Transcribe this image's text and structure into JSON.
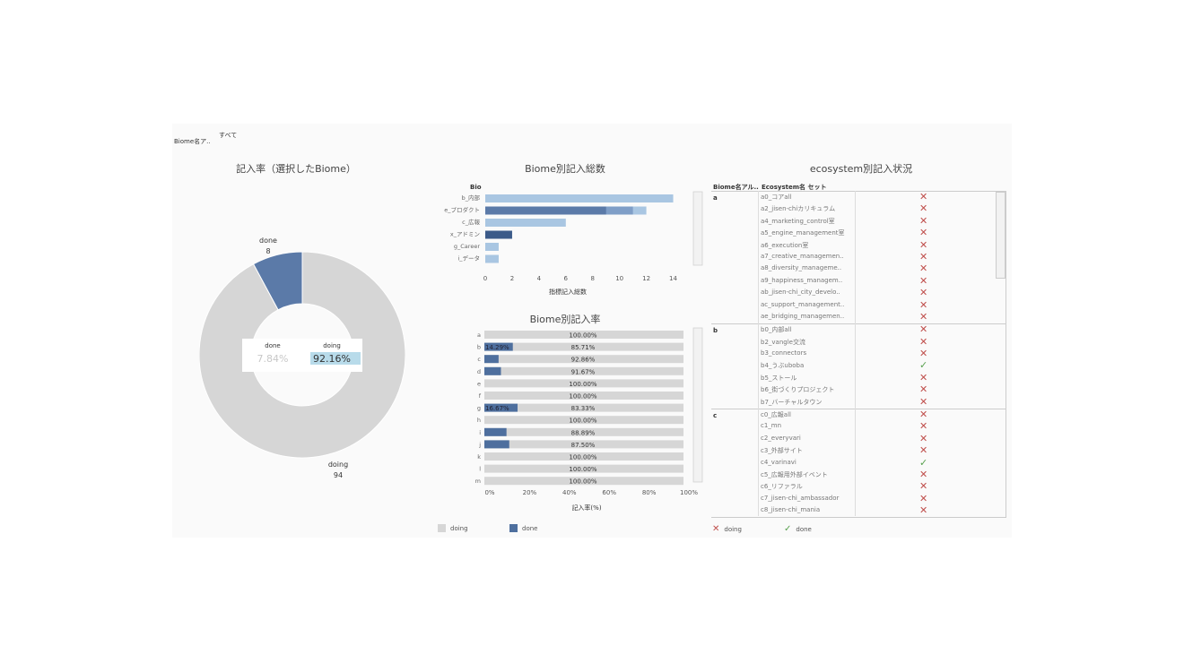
{
  "filter": {
    "label": "Biome名ア..",
    "value": "すべて"
  },
  "donut": {
    "title": "記入率（選択したBiome）",
    "done_label": "done",
    "done_count": "8",
    "doing_label": "doing",
    "doing_count": "94",
    "center_done_label": "done",
    "center_done_pct": "7.84%",
    "center_doing_label": "doing",
    "center_doing_pct": "92.16%",
    "done_value": 8,
    "doing_value": 94,
    "colors": {
      "done": "#5b7aa8",
      "doing": "#d6d6d6"
    }
  },
  "totals": {
    "title": "Biome別記入総数",
    "row_header": "Bio",
    "xlabel": "指標記入総数",
    "chart_data": {
      "type": "bar",
      "title": "Biome別記入総数",
      "xlabel": "指標記入総数",
      "categories": [
        "b_内部",
        "e_プロダクト",
        "c_広報",
        "x_アドミン",
        "g_Career",
        "i_データ"
      ],
      "series": [
        {
          "name": "done",
          "values": [
            0,
            9,
            0,
            2,
            0,
            0
          ]
        },
        {
          "name": "doing",
          "values": [
            14,
            12,
            6,
            2,
            1,
            1
          ]
        }
      ],
      "xlim": [
        0,
        14.5
      ],
      "ticks": [
        "0",
        "2",
        "4",
        "6",
        "8",
        "10",
        "12",
        "14"
      ]
    }
  },
  "rates": {
    "title": "Biome別記入率",
    "xlabel": "記入率(%)",
    "chart_data": {
      "type": "bar",
      "title": "Biome別記入率",
      "xlabel": "記入率(%)",
      "categories": [
        "a",
        "b",
        "c",
        "d",
        "e",
        "f",
        "g",
        "h",
        "i",
        "j",
        "k",
        "l",
        "m"
      ],
      "done_pct": [
        0,
        14.29,
        7.14,
        8.33,
        0,
        0,
        16.67,
        0,
        11.11,
        12.5,
        0,
        0,
        0
      ],
      "done_labels": [
        "",
        "14.29%",
        "",
        "",
        "",
        "",
        "16.67%",
        "",
        "",
        "",
        "",
        "",
        ""
      ],
      "doing_labels": [
        "100.00%",
        "85.71%",
        "92.86%",
        "91.67%",
        "100.00%",
        "100.00%",
        "83.33%",
        "100.00%",
        "88.89%",
        "87.50%",
        "100.00%",
        "100.00%",
        "100.00%"
      ],
      "ticks": [
        "0%",
        "20%",
        "40%",
        "60%",
        "80%",
        "100%"
      ]
    }
  },
  "ecosystem": {
    "title": "ecosystem別記入状況",
    "col1_header": "Biome名アル..",
    "col2_header": "Ecosystem名 セット",
    "groups": [
      {
        "label": "a",
        "rows": [
          {
            "name": "a0_コアall",
            "status": "x"
          },
          {
            "name": "a2_jisen-chiカリキュラム",
            "status": "x"
          },
          {
            "name": "a4_marketing_control室",
            "status": "x"
          },
          {
            "name": "a5_engine_management室",
            "status": "x"
          },
          {
            "name": "a6_execution室",
            "status": "x"
          },
          {
            "name": "a7_creative_managemen..",
            "status": "x"
          },
          {
            "name": "a8_diversity_manageme..",
            "status": "x"
          },
          {
            "name": "a9_happiness_managem..",
            "status": "x"
          },
          {
            "name": "ab_jisen-chi_city_develo..",
            "status": "x"
          },
          {
            "name": "ac_support_management..",
            "status": "x"
          },
          {
            "name": "ae_bridging_managemen..",
            "status": "x"
          }
        ]
      },
      {
        "label": "b",
        "rows": [
          {
            "name": "b0_内部all",
            "status": "x"
          },
          {
            "name": "b2_vangle交流",
            "status": "x"
          },
          {
            "name": "b3_connectors",
            "status": "x"
          },
          {
            "name": "b4_うぶuboba",
            "status": "v"
          },
          {
            "name": "b5_ストール",
            "status": "x"
          },
          {
            "name": "b6_街づくりプロジェクト",
            "status": "x"
          },
          {
            "name": "b7_バーチャルタウン",
            "status": "x"
          }
        ]
      },
      {
        "label": "c",
        "rows": [
          {
            "name": "c0_広報all",
            "status": "x"
          },
          {
            "name": "c1_mn",
            "status": "x"
          },
          {
            "name": "c2_everyvari",
            "status": "x"
          },
          {
            "name": "c3_外部サイト",
            "status": "x"
          },
          {
            "name": "c4_varinavi",
            "status": "v"
          },
          {
            "name": "c5_広報用外部イベント",
            "status": "x"
          },
          {
            "name": "c6_リファラル",
            "status": "x"
          },
          {
            "name": "c7_jisen-chi_ambassador",
            "status": "x"
          },
          {
            "name": "c8_jisen-chi_mania",
            "status": "x"
          }
        ]
      }
    ],
    "marks": {
      "x": "✕",
      "v": "✓"
    }
  },
  "legend_bars": {
    "doing": "doing",
    "done": "done",
    "doing_color": "#d6d6d6",
    "done_color": "#4e6f9e"
  },
  "legend_marks": {
    "doing": "doing",
    "done": "done",
    "x_icon": "✕",
    "v_icon": "✓"
  }
}
